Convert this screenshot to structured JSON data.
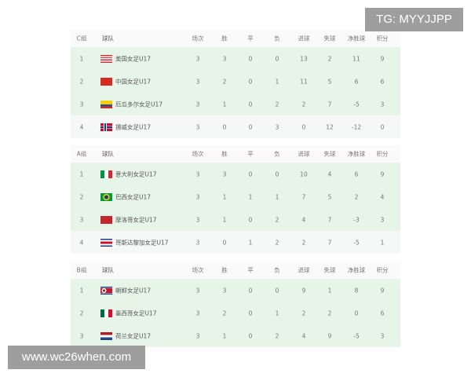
{
  "columns": [
    "场次",
    "胜",
    "平",
    "负",
    "进球",
    "失球",
    "净胜球",
    "积分"
  ],
  "team_header": "球队",
  "groups": [
    {
      "label": "C组",
      "rows": [
        {
          "rank": "1",
          "flag": "usa-flag",
          "name": "美国女足U17",
          "stats": [
            "3",
            "3",
            "0",
            "0",
            "13",
            "2",
            "11",
            "9"
          ],
          "qualified": true
        },
        {
          "rank": "2",
          "flag": "china-flag",
          "name": "中国女足U17",
          "stats": [
            "3",
            "2",
            "0",
            "1",
            "11",
            "5",
            "6",
            "6"
          ],
          "qualified": true
        },
        {
          "rank": "3",
          "flag": "ecuador-flag",
          "name": "厄瓜多尔女足U17",
          "stats": [
            "3",
            "1",
            "0",
            "2",
            "2",
            "7",
            "-5",
            "3"
          ],
          "qualified": true
        },
        {
          "rank": "4",
          "flag": "norway-flag",
          "name": "挪威女足U17",
          "stats": [
            "3",
            "0",
            "0",
            "3",
            "0",
            "12",
            "-12",
            "0"
          ],
          "qualified": false
        }
      ]
    },
    {
      "label": "A组",
      "rows": [
        {
          "rank": "1",
          "flag": "italy-flag",
          "name": "意大利女足U17",
          "stats": [
            "3",
            "3",
            "0",
            "0",
            "10",
            "4",
            "6",
            "9"
          ],
          "qualified": true
        },
        {
          "rank": "2",
          "flag": "brazil-flag",
          "name": "巴西女足U17",
          "stats": [
            "3",
            "1",
            "1",
            "1",
            "7",
            "5",
            "2",
            "4"
          ],
          "qualified": true
        },
        {
          "rank": "3",
          "flag": "morocco-flag",
          "name": "摩洛哥女足U17",
          "stats": [
            "3",
            "1",
            "0",
            "2",
            "4",
            "7",
            "-3",
            "3"
          ],
          "qualified": true
        },
        {
          "rank": "4",
          "flag": "costa-rica-flag",
          "name": "哥斯达黎加女足U17",
          "stats": [
            "3",
            "0",
            "1",
            "2",
            "2",
            "7",
            "-5",
            "1"
          ],
          "qualified": false
        }
      ]
    },
    {
      "label": "B组",
      "rows": [
        {
          "rank": "1",
          "flag": "north-korea-flag",
          "name": "朝鲜女足U17",
          "stats": [
            "3",
            "3",
            "0",
            "0",
            "9",
            "1",
            "8",
            "9"
          ],
          "qualified": true
        },
        {
          "rank": "2",
          "flag": "mexico-flag",
          "name": "墨西哥女足U17",
          "stats": [
            "3",
            "2",
            "0",
            "1",
            "2",
            "2",
            "0",
            "6"
          ],
          "qualified": true
        },
        {
          "rank": "3",
          "flag": "netherlands-flag",
          "name": "荷兰女足U17",
          "stats": [
            "3",
            "1",
            "0",
            "2",
            "4",
            "9",
            "-5",
            "3"
          ],
          "qualified": true
        }
      ]
    }
  ],
  "colors": {
    "qualified_row": "#e6f5e8",
    "other_row": "#f6f8f7",
    "header": "#fafafa"
  },
  "watermark_top": "TG: MYYJJPP",
  "watermark_bottom": "www.wc26when.com"
}
